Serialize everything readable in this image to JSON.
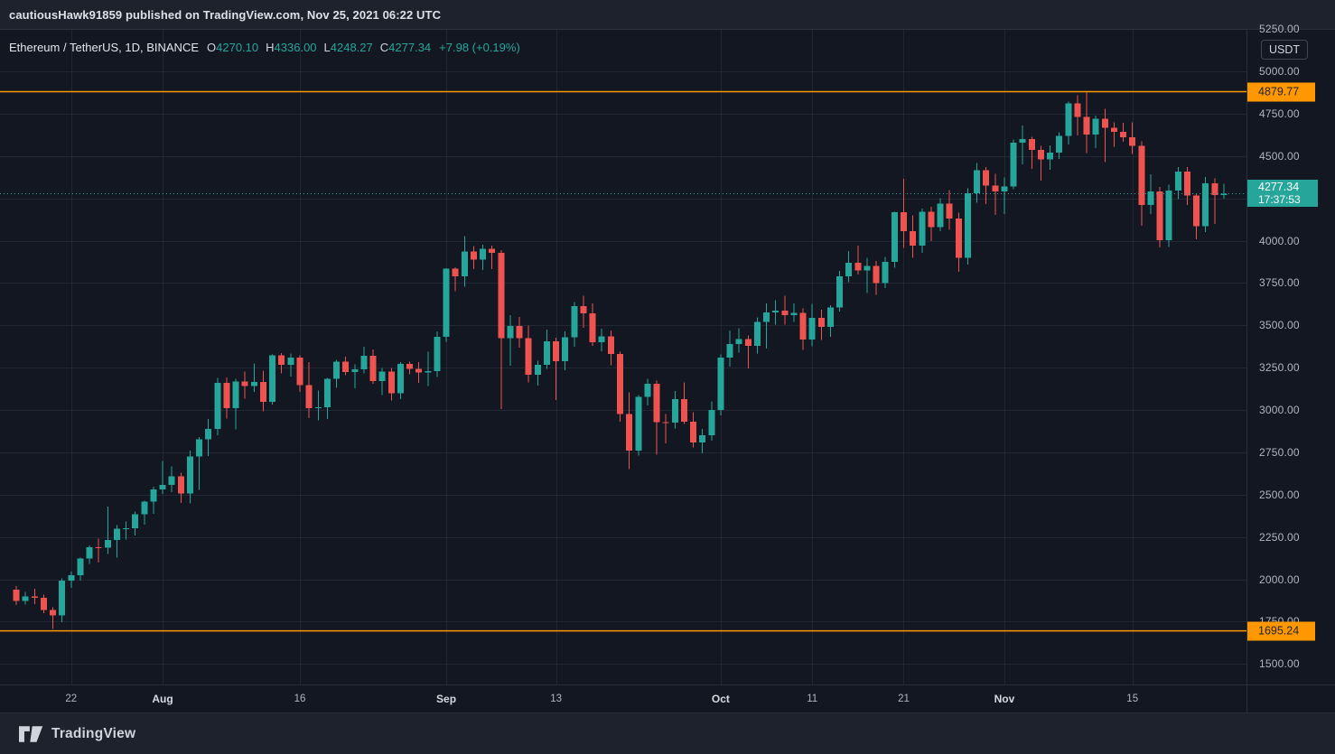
{
  "publish_bar": {
    "text": "cautiousHawk91859 published on TradingView.com, Nov 25, 2021 06:22 UTC"
  },
  "legend": {
    "symbol": "Ethereum / TetherUS, 1D, BINANCE",
    "ohlc": [
      {
        "label": "O",
        "value": "4270.10"
      },
      {
        "label": "H",
        "value": "4336.00"
      },
      {
        "label": "L",
        "value": "4248.27"
      },
      {
        "label": "C",
        "value": "4277.34"
      }
    ],
    "change": "+7.98 (+0.19%)"
  },
  "price_axis": {
    "unit": "USDT",
    "labels": [
      "5250.00",
      "5000.00",
      "4750.00",
      "4500.00",
      "4000.00",
      "3750.00",
      "3500.00",
      "3250.00",
      "3000.00",
      "2750.00",
      "2500.00",
      "2250.00",
      "2000.00",
      "1750.00",
      "1500.00"
    ],
    "alerts": [
      {
        "text": "4879.77",
        "value": 4879.77
      },
      {
        "text": "1695.24",
        "value": 1695.24
      }
    ],
    "last": {
      "price": "4277.34",
      "countdown": "17:37:53",
      "value": 4277.34
    }
  },
  "time_axis": {
    "ticks": [
      {
        "index": 6,
        "label": "22",
        "bold": false
      },
      {
        "index": 16,
        "label": "Aug",
        "bold": true
      },
      {
        "index": 31,
        "label": "16",
        "bold": false
      },
      {
        "index": 47,
        "label": "Sep",
        "bold": true
      },
      {
        "index": 59,
        "label": "13",
        "bold": false
      },
      {
        "index": 77,
        "label": "Oct",
        "bold": true
      },
      {
        "index": 87,
        "label": "11",
        "bold": false
      },
      {
        "index": 97,
        "label": "21",
        "bold": false
      },
      {
        "index": 108,
        "label": "Nov",
        "bold": true
      },
      {
        "index": 122,
        "label": "15",
        "bold": false
      }
    ]
  },
  "footer": {
    "brand": "TradingView"
  },
  "colors": {
    "up": "#26a69a",
    "down": "#ef5350",
    "alert_line": "#ff9800",
    "last_price_line": "#26a69a",
    "grid": "rgba(54,60,78,0.45)"
  },
  "chart_data": {
    "type": "candlestick",
    "title": "Ethereum / TetherUS, 1D, BINANCE",
    "symbol": "ETHUSDT",
    "interval": "1D",
    "exchange": "BINANCE",
    "unit": "USDT",
    "ylim": [
      1380,
      5280
    ],
    "y_grid": {
      "min": 1500,
      "max": 5250,
      "step": 250
    },
    "horizontal_lines": [
      4879.77,
      1695.24
    ],
    "last_price": 4277.34,
    "current_bar": {
      "open": 4270.1,
      "high": 4336.0,
      "low": 4248.27,
      "close": 4277.34,
      "change": "+7.98 (+0.19%)"
    },
    "columns": [
      "date",
      "open",
      "high",
      "low",
      "close"
    ],
    "candles": [
      [
        "07-16",
        1940,
        1959,
        1849,
        1872
      ],
      [
        "07-17",
        1872,
        1925,
        1851,
        1900
      ],
      [
        "07-18",
        1900,
        1944,
        1853,
        1892
      ],
      [
        "07-19",
        1892,
        1909,
        1800,
        1818
      ],
      [
        "07-20",
        1818,
        1836,
        1706,
        1786
      ],
      [
        "07-21",
        1786,
        2006,
        1747,
        1992
      ],
      [
        "07-22",
        1992,
        2046,
        1950,
        2024
      ],
      [
        "07-23",
        2024,
        2129,
        1993,
        2122
      ],
      [
        "07-24",
        2122,
        2200,
        2090,
        2189
      ],
      [
        "07-25",
        2189,
        2240,
        2100,
        2187
      ],
      [
        "07-26",
        2187,
        2430,
        2150,
        2231
      ],
      [
        "07-27",
        2231,
        2321,
        2128,
        2299
      ],
      [
        "07-28",
        2299,
        2342,
        2236,
        2301
      ],
      [
        "07-29",
        2301,
        2399,
        2258,
        2385
      ],
      [
        "07-30",
        2385,
        2465,
        2322,
        2460
      ],
      [
        "07-31",
        2460,
        2547,
        2388,
        2531
      ],
      [
        "08-01",
        2531,
        2699,
        2505,
        2557
      ],
      [
        "08-02",
        2557,
        2667,
        2514,
        2608
      ],
      [
        "08-03",
        2608,
        2630,
        2451,
        2506
      ],
      [
        "08-04",
        2506,
        2760,
        2448,
        2725
      ],
      [
        "08-05",
        2725,
        2840,
        2528,
        2827
      ],
      [
        "08-06",
        2827,
        2947,
        2727,
        2888
      ],
      [
        "08-07",
        2888,
        3190,
        2852,
        3160
      ],
      [
        "08-08",
        3160,
        3192,
        2950,
        3012
      ],
      [
        "08-09",
        3012,
        3184,
        2886,
        3168
      ],
      [
        "08-10",
        3168,
        3228,
        3068,
        3142
      ],
      [
        "08-11",
        3142,
        3274,
        3107,
        3165
      ],
      [
        "08-12",
        3165,
        3232,
        2992,
        3048
      ],
      [
        "08-13",
        3048,
        3329,
        3031,
        3323
      ],
      [
        "08-14",
        3323,
        3336,
        3215,
        3267
      ],
      [
        "08-15",
        3267,
        3334,
        3197,
        3310
      ],
      [
        "08-16",
        3310,
        3324,
        3106,
        3146
      ],
      [
        "08-17",
        3146,
        3283,
        2952,
        3010
      ],
      [
        "08-18",
        3010,
        3115,
        2939,
        3015
      ],
      [
        "08-19",
        3015,
        3189,
        2946,
        3183
      ],
      [
        "08-20",
        3183,
        3296,
        3131,
        3286
      ],
      [
        "08-21",
        3286,
        3314,
        3205,
        3225
      ],
      [
        "08-22",
        3225,
        3269,
        3129,
        3241
      ],
      [
        "08-23",
        3241,
        3374,
        3216,
        3320
      ],
      [
        "08-24",
        3320,
        3358,
        3154,
        3172
      ],
      [
        "08-25",
        3172,
        3247,
        3087,
        3228
      ],
      [
        "08-26",
        3228,
        3248,
        3057,
        3100
      ],
      [
        "08-27",
        3100,
        3282,
        3063,
        3273
      ],
      [
        "08-28",
        3273,
        3286,
        3212,
        3244
      ],
      [
        "08-29",
        3244,
        3282,
        3159,
        3222
      ],
      [
        "08-30",
        3222,
        3344,
        3142,
        3230
      ],
      [
        "08-31",
        3230,
        3465,
        3194,
        3433
      ],
      [
        "09-01",
        3433,
        3837,
        3403,
        3835
      ],
      [
        "09-02",
        3835,
        3842,
        3702,
        3790
      ],
      [
        "09-03",
        3790,
        4027,
        3727,
        3936
      ],
      [
        "09-04",
        3936,
        3968,
        3833,
        3887
      ],
      [
        "09-05",
        3887,
        3976,
        3828,
        3952
      ],
      [
        "09-06",
        3952,
        3970,
        3833,
        3928
      ],
      [
        "09-07",
        3928,
        3943,
        3005,
        3425
      ],
      [
        "09-08",
        3425,
        3559,
        3261,
        3496
      ],
      [
        "09-09",
        3496,
        3549,
        3368,
        3423
      ],
      [
        "09-10",
        3423,
        3500,
        3164,
        3209
      ],
      [
        "09-11",
        3209,
        3290,
        3144,
        3267
      ],
      [
        "09-12",
        3267,
        3475,
        3244,
        3406
      ],
      [
        "09-13",
        3406,
        3428,
        3060,
        3287
      ],
      [
        "09-14",
        3287,
        3463,
        3235,
        3430
      ],
      [
        "09-15",
        3430,
        3638,
        3373,
        3614
      ],
      [
        "09-16",
        3614,
        3675,
        3485,
        3572
      ],
      [
        "09-17",
        3572,
        3629,
        3378,
        3400
      ],
      [
        "09-18",
        3400,
        3480,
        3346,
        3435
      ],
      [
        "09-19",
        3435,
        3470,
        3265,
        3330
      ],
      [
        "09-20",
        3330,
        3343,
        2930,
        2977
      ],
      [
        "09-21",
        2977,
        3105,
        2651,
        2760
      ],
      [
        "09-22",
        2760,
        3088,
        2731,
        3077
      ],
      [
        "09-23",
        3077,
        3184,
        3028,
        3155
      ],
      [
        "09-24",
        3155,
        3174,
        2735,
        2928
      ],
      [
        "09-25",
        2928,
        2975,
        2802,
        2925
      ],
      [
        "09-26",
        2925,
        3112,
        2892,
        3063
      ],
      [
        "09-27",
        3063,
        3163,
        2918,
        2930
      ],
      [
        "09-28",
        2930,
        2986,
        2780,
        2808
      ],
      [
        "09-29",
        2808,
        2888,
        2743,
        2852
      ],
      [
        "09-30",
        2852,
        3051,
        2820,
        3001
      ],
      [
        "10-01",
        3001,
        3329,
        2968,
        3309
      ],
      [
        "10-02",
        3309,
        3470,
        3255,
        3389
      ],
      [
        "10-03",
        3389,
        3484,
        3340,
        3418
      ],
      [
        "10-04",
        3418,
        3440,
        3245,
        3380
      ],
      [
        "10-05",
        3380,
        3546,
        3333,
        3520
      ],
      [
        "10-06",
        3520,
        3630,
        3364,
        3575
      ],
      [
        "10-07",
        3575,
        3647,
        3503,
        3586
      ],
      [
        "10-08",
        3586,
        3675,
        3505,
        3560
      ],
      [
        "10-09",
        3560,
        3630,
        3520,
        3574
      ],
      [
        "10-10",
        3574,
        3600,
        3355,
        3415
      ],
      [
        "10-11",
        3415,
        3628,
        3377,
        3545
      ],
      [
        "10-12",
        3545,
        3593,
        3413,
        3490
      ],
      [
        "10-13",
        3490,
        3620,
        3433,
        3605
      ],
      [
        "10-14",
        3605,
        3822,
        3582,
        3790
      ],
      [
        "10-15",
        3790,
        3940,
        3754,
        3870
      ],
      [
        "10-16",
        3870,
        3970,
        3800,
        3825
      ],
      [
        "10-17",
        3825,
        3900,
        3690,
        3850
      ],
      [
        "10-18",
        3850,
        3880,
        3680,
        3750
      ],
      [
        "10-19",
        3750,
        3905,
        3720,
        3875
      ],
      [
        "10-20",
        3875,
        4171,
        3840,
        4167
      ],
      [
        "10-21",
        4167,
        4366,
        3958,
        4055
      ],
      [
        "10-22",
        4055,
        4150,
        3900,
        3970
      ],
      [
        "10-23",
        3970,
        4190,
        3927,
        4170
      ],
      [
        "10-24",
        4170,
        4200,
        3997,
        4080
      ],
      [
        "10-25",
        4080,
        4250,
        4055,
        4220
      ],
      [
        "10-26",
        4220,
        4300,
        4063,
        4130
      ],
      [
        "10-27",
        4130,
        4165,
        3817,
        3900
      ],
      [
        "10-28",
        3900,
        4309,
        3860,
        4280
      ],
      [
        "10-29",
        4280,
        4460,
        4224,
        4417
      ],
      [
        "10-30",
        4417,
        4435,
        4215,
        4325
      ],
      [
        "10-31",
        4325,
        4395,
        4152,
        4290
      ],
      [
        "11-01",
        4290,
        4374,
        4157,
        4320
      ],
      [
        "11-02",
        4320,
        4598,
        4304,
        4580
      ],
      [
        "11-03",
        4580,
        4680,
        4451,
        4600
      ],
      [
        "11-04",
        4600,
        4614,
        4423,
        4535
      ],
      [
        "11-05",
        4535,
        4560,
        4354,
        4480
      ],
      [
        "11-06",
        4480,
        4562,
        4420,
        4520
      ],
      [
        "11-07",
        4520,
        4641,
        4482,
        4620
      ],
      [
        "11-08",
        4620,
        4822,
        4568,
        4810
      ],
      [
        "11-09",
        4810,
        4859,
        4621,
        4731
      ],
      [
        "11-10",
        4731,
        4878,
        4518,
        4628
      ],
      [
        "11-11",
        4628,
        4740,
        4548,
        4720
      ],
      [
        "11-12",
        4720,
        4780,
        4463,
        4666
      ],
      [
        "11-13",
        4666,
        4700,
        4555,
        4644
      ],
      [
        "11-14",
        4644,
        4695,
        4583,
        4610
      ],
      [
        "11-15",
        4610,
        4698,
        4513,
        4560
      ],
      [
        "11-16",
        4560,
        4586,
        4088,
        4210
      ],
      [
        "11-17",
        4210,
        4391,
        4157,
        4290
      ],
      [
        "11-18",
        4290,
        4317,
        3959,
        4002
      ],
      [
        "11-19",
        4002,
        4332,
        3962,
        4296
      ],
      [
        "11-20",
        4296,
        4434,
        4246,
        4408
      ],
      [
        "11-21",
        4408,
        4436,
        4210,
        4268
      ],
      [
        "11-22",
        4268,
        4280,
        4008,
        4086
      ],
      [
        "11-23",
        4086,
        4375,
        4050,
        4340
      ],
      [
        "11-24",
        4340,
        4368,
        4099,
        4270
      ],
      [
        "11-25",
        4270.1,
        4336.0,
        4248.27,
        4277.34
      ]
    ]
  }
}
